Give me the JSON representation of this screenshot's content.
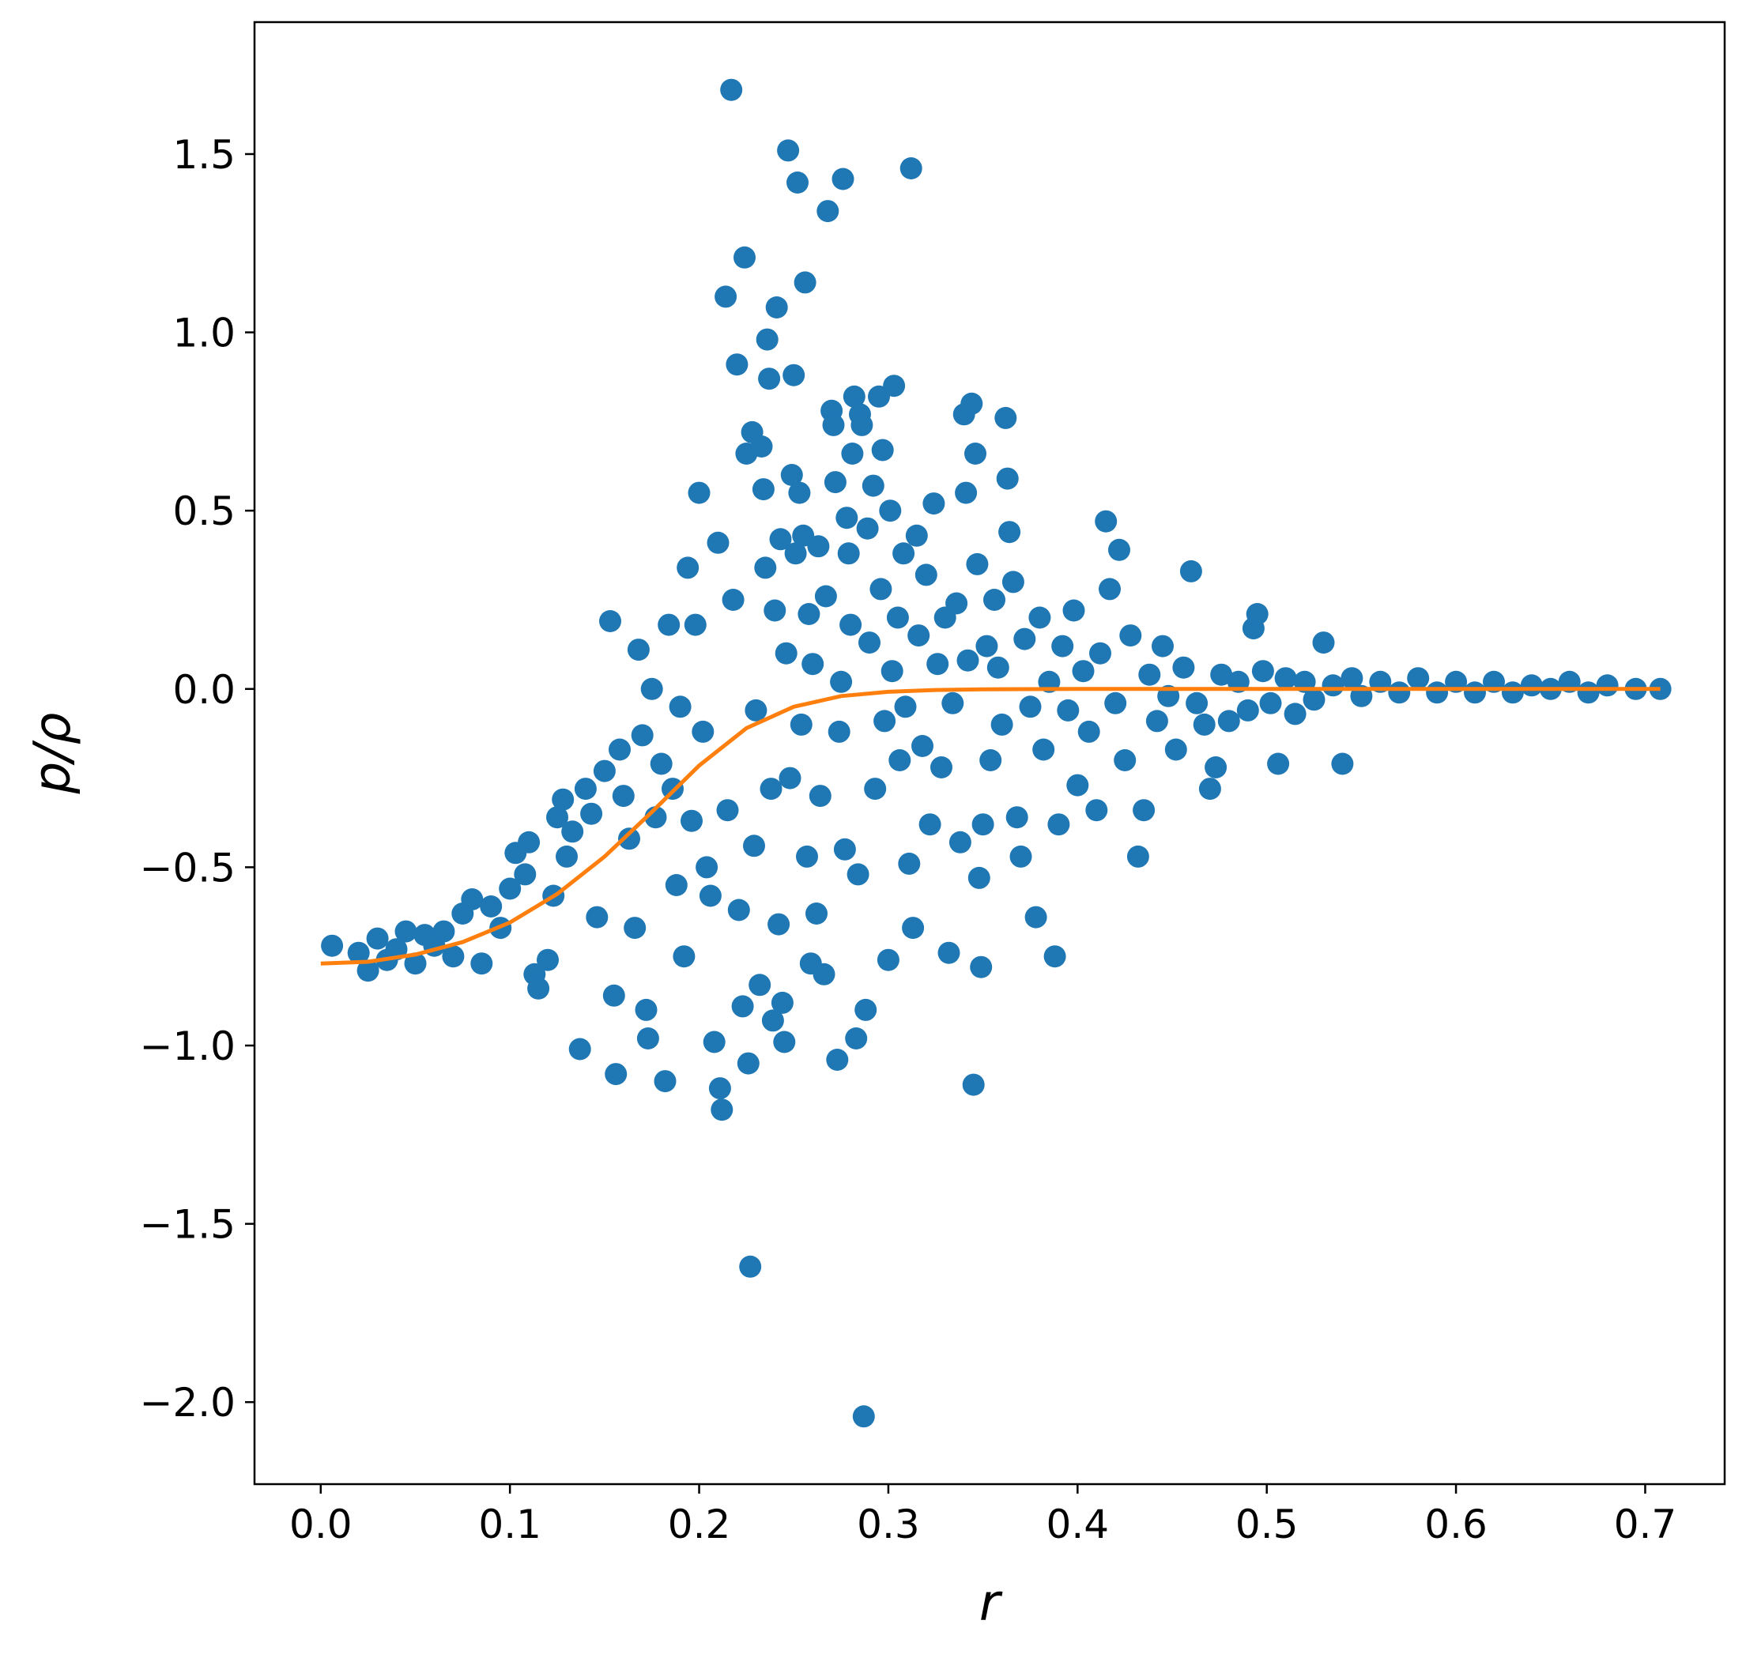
{
  "chart_data": {
    "type": "scatter",
    "title": "",
    "xlabel": "r",
    "ylabel": "p/ρ",
    "xlim": [
      -0.035,
      0.742
    ],
    "ylim": [
      -2.23,
      1.87
    ],
    "grid": false,
    "legend": "none",
    "xticks": [
      0.0,
      0.1,
      0.2,
      0.3,
      0.4,
      0.5,
      0.6,
      0.7
    ],
    "xtick_labels": [
      "0.0",
      "0.1",
      "0.2",
      "0.3",
      "0.4",
      "0.5",
      "0.6",
      "0.7"
    ],
    "yticks": [
      1.5,
      1.0,
      0.5,
      0.0,
      -0.5,
      -1.0,
      -1.5,
      -2.0
    ],
    "ytick_labels": [
      "1.5",
      "1.0",
      "0.5",
      "0.0",
      "−0.5",
      "−1.0",
      "−1.5",
      "−2.0"
    ],
    "colors": {
      "scatter": "#1f77b4",
      "line": "#ff7f0e"
    },
    "series": [
      {
        "type": "scatter",
        "points": [
          [
            0.006,
            -0.72
          ],
          [
            0.02,
            -0.74
          ],
          [
            0.025,
            -0.79
          ],
          [
            0.03,
            -0.7
          ],
          [
            0.035,
            -0.76
          ],
          [
            0.04,
            -0.73
          ],
          [
            0.045,
            -0.68
          ],
          [
            0.05,
            -0.77
          ],
          [
            0.055,
            -0.69
          ],
          [
            0.06,
            -0.72
          ],
          [
            0.065,
            -0.68
          ],
          [
            0.07,
            -0.75
          ],
          [
            0.075,
            -0.63
          ],
          [
            0.08,
            -0.59
          ],
          [
            0.085,
            -0.77
          ],
          [
            0.09,
            -0.61
          ],
          [
            0.095,
            -0.67
          ],
          [
            0.1,
            -0.56
          ],
          [
            0.103,
            -0.46
          ],
          [
            0.108,
            -0.52
          ],
          [
            0.11,
            -0.43
          ],
          [
            0.113,
            -0.8
          ],
          [
            0.115,
            -0.84
          ],
          [
            0.12,
            -0.76
          ],
          [
            0.123,
            -0.58
          ],
          [
            0.125,
            -0.36
          ],
          [
            0.128,
            -0.31
          ],
          [
            0.13,
            -0.47
          ],
          [
            0.133,
            -0.4
          ],
          [
            0.137,
            -1.01
          ],
          [
            0.14,
            -0.28
          ],
          [
            0.143,
            -0.35
          ],
          [
            0.146,
            -0.64
          ],
          [
            0.15,
            -0.23
          ],
          [
            0.153,
            0.19
          ],
          [
            0.155,
            -0.86
          ],
          [
            0.156,
            -1.08
          ],
          [
            0.158,
            -0.17
          ],
          [
            0.16,
            -0.3
          ],
          [
            0.163,
            -0.42
          ],
          [
            0.166,
            -0.67
          ],
          [
            0.168,
            0.11
          ],
          [
            0.17,
            -0.13
          ],
          [
            0.172,
            -0.9
          ],
          [
            0.173,
            -0.98
          ],
          [
            0.175,
            0.0
          ],
          [
            0.177,
            -0.36
          ],
          [
            0.18,
            -0.21
          ],
          [
            0.182,
            -1.1
          ],
          [
            0.184,
            0.18
          ],
          [
            0.186,
            -0.28
          ],
          [
            0.188,
            -0.55
          ],
          [
            0.19,
            -0.05
          ],
          [
            0.192,
            -0.75
          ],
          [
            0.194,
            0.34
          ],
          [
            0.196,
            -0.37
          ],
          [
            0.198,
            0.18
          ],
          [
            0.2,
            0.55
          ],
          [
            0.202,
            -0.12
          ],
          [
            0.204,
            -0.5
          ],
          [
            0.206,
            -0.58
          ],
          [
            0.208,
            -0.99
          ],
          [
            0.21,
            0.41
          ],
          [
            0.211,
            -1.12
          ],
          [
            0.212,
            -1.18
          ],
          [
            0.214,
            1.1
          ],
          [
            0.215,
            -0.34
          ],
          [
            0.217,
            1.68
          ],
          [
            0.218,
            0.25
          ],
          [
            0.22,
            0.91
          ],
          [
            0.221,
            -0.62
          ],
          [
            0.223,
            -0.89
          ],
          [
            0.224,
            1.21
          ],
          [
            0.225,
            0.66
          ],
          [
            0.226,
            -1.05
          ],
          [
            0.227,
            -1.62
          ],
          [
            0.228,
            0.72
          ],
          [
            0.229,
            -0.44
          ],
          [
            0.23,
            -0.06
          ],
          [
            0.232,
            -0.83
          ],
          [
            0.233,
            0.68
          ],
          [
            0.234,
            0.56
          ],
          [
            0.235,
            0.34
          ],
          [
            0.236,
            0.98
          ],
          [
            0.237,
            0.87
          ],
          [
            0.238,
            -0.28
          ],
          [
            0.239,
            -0.93
          ],
          [
            0.24,
            0.22
          ],
          [
            0.241,
            1.07
          ],
          [
            0.242,
            -0.66
          ],
          [
            0.243,
            0.42
          ],
          [
            0.244,
            -0.88
          ],
          [
            0.245,
            -0.99
          ],
          [
            0.246,
            0.1
          ],
          [
            0.247,
            1.51
          ],
          [
            0.248,
            -0.25
          ],
          [
            0.249,
            0.6
          ],
          [
            0.25,
            0.88
          ],
          [
            0.251,
            0.38
          ],
          [
            0.252,
            1.42
          ],
          [
            0.253,
            0.55
          ],
          [
            0.254,
            -0.1
          ],
          [
            0.255,
            0.43
          ],
          [
            0.256,
            1.14
          ],
          [
            0.257,
            -0.47
          ],
          [
            0.258,
            0.21
          ],
          [
            0.259,
            -0.77
          ],
          [
            0.26,
            0.07
          ],
          [
            0.262,
            -0.63
          ],
          [
            0.263,
            0.4
          ],
          [
            0.264,
            -0.3
          ],
          [
            0.266,
            -0.8
          ],
          [
            0.267,
            0.26
          ],
          [
            0.268,
            1.34
          ],
          [
            0.27,
            0.78
          ],
          [
            0.271,
            0.74
          ],
          [
            0.272,
            0.58
          ],
          [
            0.273,
            -1.04
          ],
          [
            0.274,
            -0.12
          ],
          [
            0.275,
            0.02
          ],
          [
            0.276,
            1.43
          ],
          [
            0.277,
            -0.45
          ],
          [
            0.278,
            0.48
          ],
          [
            0.279,
            0.38
          ],
          [
            0.28,
            0.18
          ],
          [
            0.281,
            0.66
          ],
          [
            0.282,
            0.82
          ],
          [
            0.283,
            -0.98
          ],
          [
            0.284,
            -0.52
          ],
          [
            0.285,
            0.77
          ],
          [
            0.286,
            0.74
          ],
          [
            0.287,
            -2.04
          ],
          [
            0.288,
            -0.9
          ],
          [
            0.289,
            0.45
          ],
          [
            0.29,
            0.13
          ],
          [
            0.292,
            0.57
          ],
          [
            0.293,
            -0.28
          ],
          [
            0.295,
            0.82
          ],
          [
            0.296,
            0.28
          ],
          [
            0.297,
            0.67
          ],
          [
            0.298,
            -0.09
          ],
          [
            0.3,
            -0.76
          ],
          [
            0.301,
            0.5
          ],
          [
            0.302,
            0.05
          ],
          [
            0.303,
            0.85
          ],
          [
            0.305,
            0.2
          ],
          [
            0.306,
            -0.2
          ],
          [
            0.308,
            0.38
          ],
          [
            0.309,
            -0.05
          ],
          [
            0.311,
            -0.49
          ],
          [
            0.312,
            1.46
          ],
          [
            0.313,
            -0.67
          ],
          [
            0.315,
            0.43
          ],
          [
            0.316,
            0.15
          ],
          [
            0.318,
            -0.16
          ],
          [
            0.32,
            0.32
          ],
          [
            0.322,
            -0.38
          ],
          [
            0.324,
            0.52
          ],
          [
            0.326,
            0.07
          ],
          [
            0.328,
            -0.22
          ],
          [
            0.33,
            0.2
          ],
          [
            0.332,
            -0.74
          ],
          [
            0.334,
            -0.04
          ],
          [
            0.336,
            0.24
          ],
          [
            0.338,
            -0.43
          ],
          [
            0.34,
            0.77
          ],
          [
            0.341,
            0.55
          ],
          [
            0.342,
            0.08
          ],
          [
            0.344,
            0.8
          ],
          [
            0.345,
            -1.11
          ],
          [
            0.346,
            0.66
          ],
          [
            0.347,
            0.35
          ],
          [
            0.348,
            -0.53
          ],
          [
            0.349,
            -0.78
          ],
          [
            0.35,
            -0.38
          ],
          [
            0.352,
            0.12
          ],
          [
            0.354,
            -0.2
          ],
          [
            0.356,
            0.25
          ],
          [
            0.358,
            0.06
          ],
          [
            0.36,
            -0.1
          ],
          [
            0.362,
            0.76
          ],
          [
            0.363,
            0.59
          ],
          [
            0.364,
            0.44
          ],
          [
            0.366,
            0.3
          ],
          [
            0.368,
            -0.36
          ],
          [
            0.37,
            -0.47
          ],
          [
            0.372,
            0.14
          ],
          [
            0.375,
            -0.05
          ],
          [
            0.378,
            -0.64
          ],
          [
            0.38,
            0.2
          ],
          [
            0.382,
            -0.17
          ],
          [
            0.385,
            0.02
          ],
          [
            0.388,
            -0.75
          ],
          [
            0.39,
            -0.38
          ],
          [
            0.392,
            0.12
          ],
          [
            0.395,
            -0.06
          ],
          [
            0.398,
            0.22
          ],
          [
            0.4,
            -0.27
          ],
          [
            0.403,
            0.05
          ],
          [
            0.406,
            -0.12
          ],
          [
            0.41,
            -0.34
          ],
          [
            0.412,
            0.1
          ],
          [
            0.415,
            0.47
          ],
          [
            0.417,
            0.28
          ],
          [
            0.42,
            -0.04
          ],
          [
            0.422,
            0.39
          ],
          [
            0.425,
            -0.2
          ],
          [
            0.428,
            0.15
          ],
          [
            0.432,
            -0.47
          ],
          [
            0.435,
            -0.34
          ],
          [
            0.438,
            0.04
          ],
          [
            0.442,
            -0.09
          ],
          [
            0.445,
            0.12
          ],
          [
            0.448,
            -0.02
          ],
          [
            0.452,
            -0.17
          ],
          [
            0.456,
            0.06
          ],
          [
            0.46,
            0.33
          ],
          [
            0.463,
            -0.04
          ],
          [
            0.467,
            -0.1
          ],
          [
            0.47,
            -0.28
          ],
          [
            0.473,
            -0.22
          ],
          [
            0.476,
            0.04
          ],
          [
            0.48,
            -0.09
          ],
          [
            0.485,
            0.02
          ],
          [
            0.49,
            -0.06
          ],
          [
            0.493,
            0.17
          ],
          [
            0.495,
            0.21
          ],
          [
            0.498,
            0.05
          ],
          [
            0.502,
            -0.04
          ],
          [
            0.506,
            -0.21
          ],
          [
            0.51,
            0.03
          ],
          [
            0.515,
            -0.07
          ],
          [
            0.52,
            0.02
          ],
          [
            0.525,
            -0.03
          ],
          [
            0.53,
            0.13
          ],
          [
            0.535,
            0.01
          ],
          [
            0.54,
            -0.21
          ],
          [
            0.545,
            0.03
          ],
          [
            0.55,
            -0.02
          ],
          [
            0.56,
            0.02
          ],
          [
            0.57,
            -0.01
          ],
          [
            0.58,
            0.03
          ],
          [
            0.59,
            -0.01
          ],
          [
            0.6,
            0.02
          ],
          [
            0.61,
            -0.01
          ],
          [
            0.62,
            0.02
          ],
          [
            0.63,
            -0.01
          ],
          [
            0.64,
            0.01
          ],
          [
            0.65,
            0.0
          ],
          [
            0.66,
            0.02
          ],
          [
            0.67,
            -0.01
          ],
          [
            0.68,
            0.01
          ],
          [
            0.695,
            0.0
          ],
          [
            0.708,
            0.0
          ]
        ]
      },
      {
        "type": "line",
        "x": [
          0.0,
          0.025,
          0.05,
          0.075,
          0.1,
          0.125,
          0.15,
          0.175,
          0.2,
          0.225,
          0.25,
          0.275,
          0.3,
          0.325,
          0.35,
          0.4,
          0.45,
          0.5,
          0.6,
          0.708
        ],
        "y": [
          -0.77,
          -0.765,
          -0.745,
          -0.71,
          -0.655,
          -0.575,
          -0.47,
          -0.345,
          -0.215,
          -0.11,
          -0.05,
          -0.02,
          -0.008,
          -0.003,
          -0.001,
          0.0,
          0.0,
          0.0,
          0.0,
          0.0
        ]
      }
    ]
  }
}
